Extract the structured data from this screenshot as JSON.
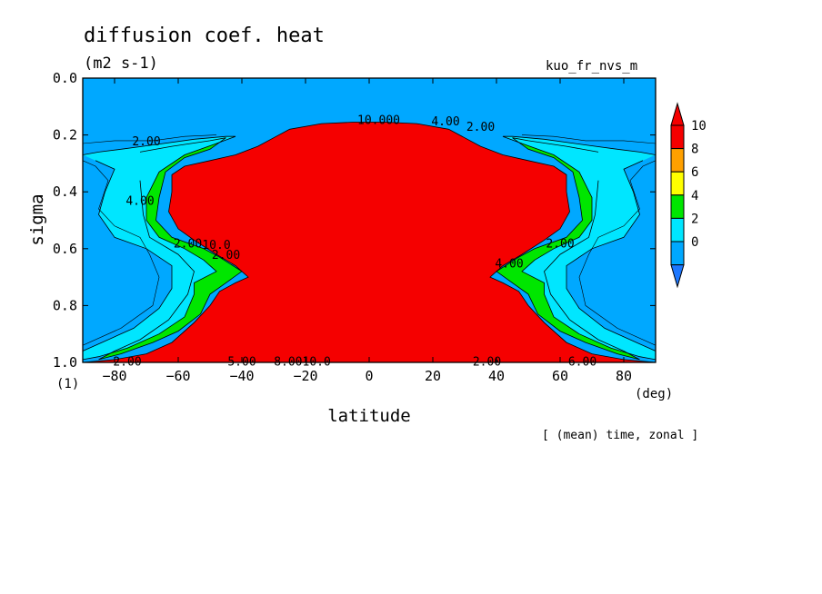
{
  "chart_data": {
    "type": "heatmap",
    "title": "diffusion coef. heat",
    "units": "(m2 s-1)",
    "dataset": "kuo_fr_nvs_m",
    "xlabel": "latitude",
    "x_units": "(deg)",
    "ylabel": "sigma",
    "y_units": "(1)",
    "footer": "[ (mean) time, zonal ]",
    "xlim": [
      -90,
      90
    ],
    "ylim": [
      1.0,
      0.0
    ],
    "x_ticks": [
      -80,
      -60,
      -40,
      -20,
      0,
      20,
      40,
      60,
      80
    ],
    "y_ticks": [
      "0.0",
      "0.2",
      "0.4",
      "0.6",
      "0.8",
      "1.0"
    ],
    "colorbar": {
      "levels": [
        0,
        2,
        4,
        6,
        8,
        10
      ],
      "colors": [
        "#00a8ff",
        "#00e6ff",
        "#00e600",
        "#ffff00",
        "#ffa000",
        "#f50000"
      ],
      "under_color": "#1e78ff",
      "over_color": "#f50000"
    },
    "regions": [
      {
        "range": ">10",
        "color": "#f50000",
        "boundary": [
          [
            -90,
            1.0
          ],
          [
            -80,
            0.99
          ],
          [
            -70,
            0.97
          ],
          [
            -62,
            0.93
          ],
          [
            -55,
            0.86
          ],
          [
            -50,
            0.8
          ],
          [
            -47,
            0.75
          ],
          [
            -42,
            0.72
          ],
          [
            -38,
            0.7
          ],
          [
            -42,
            0.66
          ],
          [
            -48,
            0.62
          ],
          [
            -55,
            0.57
          ],
          [
            -60,
            0.53
          ],
          [
            -63,
            0.47
          ],
          [
            -62,
            0.4
          ],
          [
            -62,
            0.34
          ],
          [
            -58,
            0.31
          ],
          [
            -50,
            0.29
          ],
          [
            -42,
            0.27
          ],
          [
            -35,
            0.24
          ],
          [
            -30,
            0.21
          ],
          [
            -25,
            0.18
          ],
          [
            -15,
            0.16
          ],
          [
            -5,
            0.155
          ],
          [
            5,
            0.155
          ],
          [
            15,
            0.16
          ],
          [
            25,
            0.18
          ],
          [
            30,
            0.21
          ],
          [
            35,
            0.24
          ],
          [
            42,
            0.27
          ],
          [
            50,
            0.29
          ],
          [
            58,
            0.31
          ],
          [
            62,
            0.34
          ],
          [
            62,
            0.4
          ],
          [
            63,
            0.47
          ],
          [
            60,
            0.53
          ],
          [
            55,
            0.57
          ],
          [
            48,
            0.62
          ],
          [
            42,
            0.66
          ],
          [
            38,
            0.7
          ],
          [
            42,
            0.72
          ],
          [
            47,
            0.75
          ],
          [
            50,
            0.8
          ],
          [
            55,
            0.86
          ],
          [
            62,
            0.93
          ],
          [
            70,
            0.97
          ],
          [
            80,
            0.99
          ],
          [
            90,
            1.0
          ]
        ]
      },
      {
        "range": "4-6",
        "color": "#00e600",
        "side": "left",
        "boundary": [
          [
            -72,
            0.26
          ],
          [
            -62,
            0.24
          ],
          [
            -50,
            0.22
          ],
          [
            -45,
            0.21
          ],
          [
            -50,
            0.25
          ],
          [
            -58,
            0.28
          ],
          [
            -64,
            0.33
          ],
          [
            -66,
            0.42
          ],
          [
            -67,
            0.5
          ],
          [
            -62,
            0.56
          ],
          [
            -52,
            0.6
          ],
          [
            -47,
            0.63
          ],
          [
            -40,
            0.68
          ],
          [
            -45,
            0.72
          ],
          [
            -50,
            0.76
          ],
          [
            -53,
            0.83
          ],
          [
            -60,
            0.89
          ],
          [
            -68,
            0.93
          ],
          [
            -78,
            0.97
          ],
          [
            -85,
            0.99
          ],
          [
            -80,
            0.96
          ],
          [
            -72,
            0.92
          ],
          [
            -63,
            0.85
          ],
          [
            -57,
            0.76
          ],
          [
            -55,
            0.68
          ],
          [
            -60,
            0.62
          ],
          [
            -69,
            0.56
          ],
          [
            -71,
            0.48
          ],
          [
            -72,
            0.36
          ]
        ]
      },
      {
        "range": "4-6",
        "color": "#00e600",
        "side": "right",
        "boundary": [
          [
            72,
            0.26
          ],
          [
            62,
            0.24
          ],
          [
            50,
            0.22
          ],
          [
            45,
            0.21
          ],
          [
            50,
            0.25
          ],
          [
            58,
            0.28
          ],
          [
            64,
            0.33
          ],
          [
            66,
            0.42
          ],
          [
            67,
            0.5
          ],
          [
            62,
            0.56
          ],
          [
            52,
            0.6
          ],
          [
            47,
            0.63
          ],
          [
            40,
            0.68
          ],
          [
            45,
            0.72
          ],
          [
            50,
            0.76
          ],
          [
            53,
            0.83
          ],
          [
            60,
            0.89
          ],
          [
            68,
            0.93
          ],
          [
            78,
            0.97
          ],
          [
            85,
            0.99
          ],
          [
            80,
            0.96
          ],
          [
            72,
            0.92
          ],
          [
            63,
            0.85
          ],
          [
            57,
            0.76
          ],
          [
            55,
            0.68
          ],
          [
            60,
            0.62
          ],
          [
            69,
            0.56
          ],
          [
            71,
            0.48
          ],
          [
            72,
            0.36
          ]
        ]
      },
      {
        "range": "2-4",
        "color": "#00e6ff",
        "side": "left",
        "boundary": [
          [
            -90,
            0.27
          ],
          [
            -85,
            0.26
          ],
          [
            -78,
            0.25
          ],
          [
            -68,
            0.235
          ],
          [
            -55,
            0.215
          ],
          [
            -45,
            0.205
          ],
          [
            -42,
            0.205
          ],
          [
            -48,
            0.23
          ],
          [
            -58,
            0.27
          ],
          [
            -66,
            0.33
          ],
          [
            -70,
            0.42
          ],
          [
            -70,
            0.5
          ],
          [
            -66,
            0.56
          ],
          [
            -58,
            0.6
          ],
          [
            -52,
            0.64
          ],
          [
            -48,
            0.68
          ],
          [
            -55,
            0.72
          ],
          [
            -55,
            0.76
          ],
          [
            -58,
            0.84
          ],
          [
            -66,
            0.9
          ],
          [
            -76,
            0.95
          ],
          [
            -85,
            0.98
          ],
          [
            -90,
            0.99
          ],
          [
            -90,
            0.96
          ],
          [
            -84,
            0.93
          ],
          [
            -74,
            0.88
          ],
          [
            -66,
            0.81
          ],
          [
            -62,
            0.74
          ],
          [
            -62,
            0.66
          ],
          [
            -70,
            0.6
          ],
          [
            -80,
            0.56
          ],
          [
            -85,
            0.48
          ],
          [
            -83,
            0.4
          ],
          [
            -80,
            0.32
          ],
          [
            -86,
            0.29
          ]
        ]
      },
      {
        "range": "2-4",
        "color": "#00e6ff",
        "side": "right",
        "boundary": [
          [
            90,
            0.27
          ],
          [
            85,
            0.26
          ],
          [
            78,
            0.25
          ],
          [
            68,
            0.235
          ],
          [
            55,
            0.215
          ],
          [
            45,
            0.205
          ],
          [
            42,
            0.205
          ],
          [
            48,
            0.23
          ],
          [
            58,
            0.27
          ],
          [
            66,
            0.33
          ],
          [
            70,
            0.42
          ],
          [
            70,
            0.5
          ],
          [
            66,
            0.56
          ],
          [
            58,
            0.6
          ],
          [
            52,
            0.64
          ],
          [
            48,
            0.68
          ],
          [
            55,
            0.72
          ],
          [
            55,
            0.76
          ],
          [
            58,
            0.84
          ],
          [
            66,
            0.9
          ],
          [
            76,
            0.95
          ],
          [
            85,
            0.98
          ],
          [
            90,
            0.99
          ],
          [
            90,
            0.96
          ],
          [
            84,
            0.93
          ],
          [
            74,
            0.88
          ],
          [
            66,
            0.81
          ],
          [
            62,
            0.74
          ],
          [
            62,
            0.66
          ],
          [
            70,
            0.6
          ],
          [
            80,
            0.56
          ],
          [
            85,
            0.48
          ],
          [
            83,
            0.4
          ],
          [
            80,
            0.32
          ],
          [
            86,
            0.29
          ]
        ]
      }
    ],
    "contour_labels": [
      {
        "text": "2.00",
        "lon": -70,
        "sigma": 0.22
      },
      {
        "text": "4.00",
        "lon": -72,
        "sigma": 0.43
      },
      {
        "text": "2.00",
        "lon": -57,
        "sigma": 0.58
      },
      {
        "text": "10.0",
        "lon": -48,
        "sigma": 0.585
      },
      {
        "text": "2.00",
        "lon": -45,
        "sigma": 0.62
      },
      {
        "text": "10.000",
        "lon": 3,
        "sigma": 0.145
      },
      {
        "text": "4.00",
        "lon": 24,
        "sigma": 0.15
      },
      {
        "text": "2.00",
        "lon": 35,
        "sigma": 0.17
      },
      {
        "text": "2.00",
        "lon": 60,
        "sigma": 0.58
      },
      {
        "text": "4.00",
        "lon": 44,
        "sigma": 0.65
      },
      {
        "text": "2.00",
        "lon": -76,
        "sigma": 0.995
      },
      {
        "text": "5.00",
        "lon": -40,
        "sigma": 0.995
      },
      {
        "text": "8.0010.0",
        "lon": -21,
        "sigma": 0.995
      },
      {
        "text": "2.00",
        "lon": 37,
        "sigma": 0.995
      },
      {
        "text": "6.00",
        "lon": 67,
        "sigma": 0.995
      }
    ]
  }
}
